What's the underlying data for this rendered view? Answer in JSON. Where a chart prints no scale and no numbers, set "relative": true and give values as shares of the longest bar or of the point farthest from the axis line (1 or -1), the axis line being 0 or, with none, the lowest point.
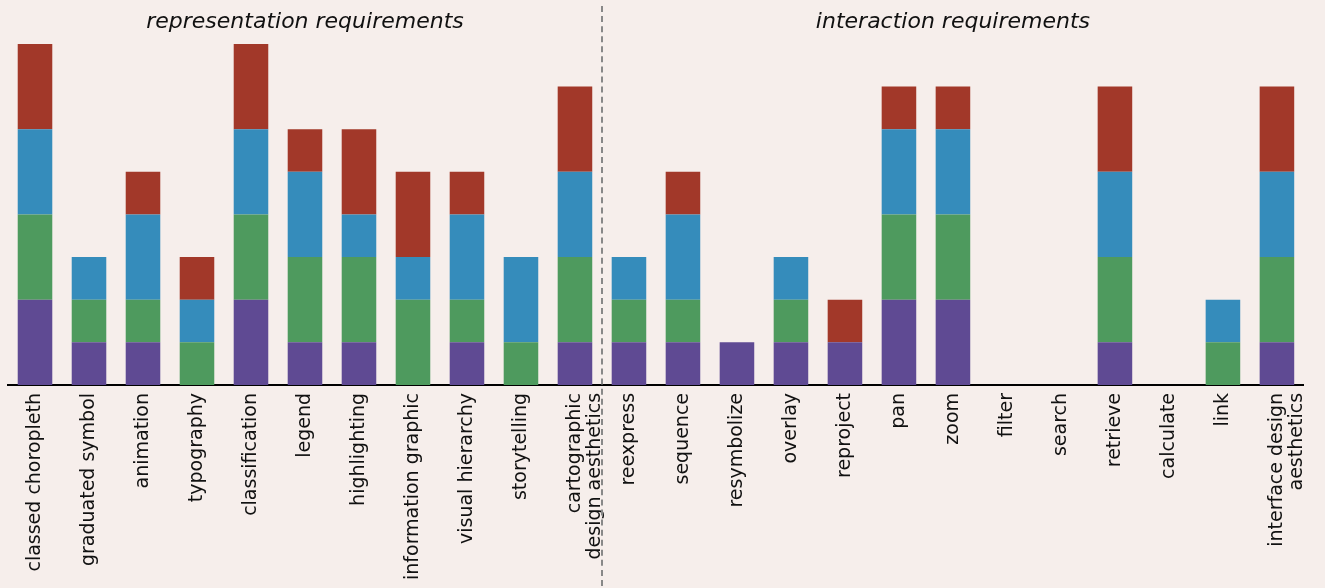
{
  "chart_data": {
    "type": "bar",
    "stacked": true,
    "relative": true,
    "legend": false,
    "grid": false,
    "annotations": [
      "representation requirements",
      "interaction requirements"
    ],
    "categories": [
      "classed choropleth",
      "graduated symbol",
      "animation",
      "typography",
      "classification",
      "legend",
      "highlighting",
      "information graphic",
      "visual hierarchy",
      "storytelling",
      "cartographic design aesthetics",
      "reexpress",
      "sequence",
      "resymbolize",
      "overlay",
      "reproject",
      "pan",
      "zoom",
      "filter",
      "search",
      "retrieve",
      "calculate",
      "link",
      "interface design aesthetics"
    ],
    "series": [
      {
        "color": "#5f4a93",
        "values": [
          0.25,
          0.125,
          0.125,
          0,
          0.25,
          0.125,
          0.125,
          0,
          0.125,
          0,
          0.125,
          0.125,
          0.125,
          0.125,
          0.125,
          0.125,
          0.25,
          0.25,
          0,
          0,
          0.125,
          0,
          0,
          0.125
        ]
      },
      {
        "color": "#4e9a5e",
        "values": [
          0.25,
          0.125,
          0.125,
          0.125,
          0.25,
          0.25,
          0.25,
          0.25,
          0.125,
          0.125,
          0.25,
          0.125,
          0.125,
          0,
          0.125,
          0,
          0.25,
          0.25,
          0,
          0,
          0.25,
          0,
          0.125,
          0.25
        ]
      },
      {
        "color": "#358cbb",
        "values": [
          0.25,
          0.125,
          0.25,
          0.125,
          0.25,
          0.25,
          0.125,
          0.125,
          0.25,
          0.25,
          0.25,
          0.125,
          0.25,
          0,
          0.125,
          0,
          0.25,
          0.25,
          0,
          0,
          0.25,
          0,
          0.125,
          0.25
        ]
      },
      {
        "color": "#a23829",
        "values": [
          0.25,
          0,
          0.125,
          0.125,
          0.25,
          0.125,
          0.25,
          0.25,
          0.125,
          0,
          0.25,
          0,
          0.125,
          0,
          0,
          0.125,
          0.125,
          0.125,
          0,
          0,
          0.25,
          0,
          0,
          0.25
        ]
      }
    ]
  }
}
